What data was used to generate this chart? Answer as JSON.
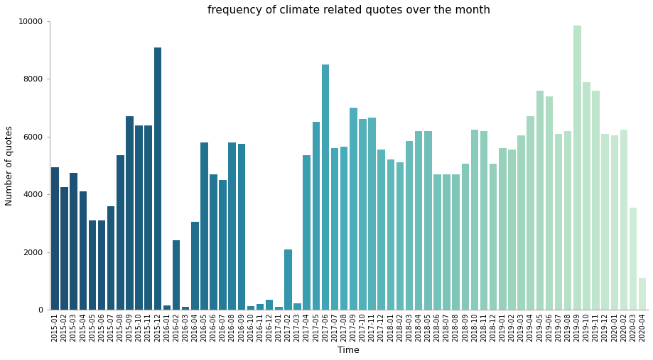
{
  "title": "frequency of climate related quotes over the month",
  "xlabel": "Time",
  "ylabel": "Number of quotes",
  "categories": [
    "2015-01",
    "2015-02",
    "2015-03",
    "2015-04",
    "2015-05",
    "2015-06",
    "2015-07",
    "2015-08",
    "2015-09",
    "2015-10",
    "2015-11",
    "2015-12",
    "2016-01",
    "2016-02",
    "2016-03",
    "2016-04",
    "2016-05",
    "2016-06",
    "2016-07",
    "2016-08",
    "2016-09",
    "2016-10",
    "2016-11",
    "2016-12",
    "2017-01",
    "2017-02",
    "2017-03",
    "2017-04",
    "2017-05",
    "2017-06",
    "2017-07",
    "2017-08",
    "2017-09",
    "2017-10",
    "2017-11",
    "2017-12",
    "2018-01",
    "2018-02",
    "2018-03",
    "2018-04",
    "2018-05",
    "2018-06",
    "2018-07",
    "2018-08",
    "2018-09",
    "2018-10",
    "2018-11",
    "2018-12",
    "2019-01",
    "2019-02",
    "2019-03",
    "2019-04",
    "2019-05",
    "2019-06",
    "2019-07",
    "2019-08",
    "2019-09",
    "2019-10",
    "2019-11",
    "2019-12",
    "2020-01",
    "2020-02",
    "2020-03",
    "2020-04"
  ],
  "values": [
    4950,
    4250,
    4750,
    4100,
    3100,
    3100,
    3600,
    5350,
    6700,
    6400,
    6400,
    9100,
    150,
    2400,
    100,
    3050,
    5800,
    4700,
    4500,
    5800,
    5750,
    120,
    200,
    350,
    100,
    2100,
    220,
    5350,
    6500,
    8500,
    5600,
    5650,
    7000,
    6600,
    6650,
    5550,
    5200,
    5100,
    5850,
    6200,
    6200,
    4700,
    4700,
    4700,
    5050,
    6250,
    6200,
    5050,
    5600,
    5550,
    6050,
    6700,
    7600,
    7400,
    6100,
    6200,
    9850,
    7900,
    7600,
    6100,
    6050,
    6250,
    3550,
    1100
  ],
  "ylim": [
    0,
    10000
  ],
  "yticks": [
    0,
    2000,
    4000,
    6000,
    8000,
    10000
  ],
  "color_stops": [
    [
      0.0,
      "#1d4f72"
    ],
    [
      0.18,
      "#1d6080"
    ],
    [
      0.36,
      "#2a8fa8"
    ],
    [
      0.5,
      "#4aadba"
    ],
    [
      0.64,
      "#72c0b8"
    ],
    [
      0.78,
      "#9dd4bc"
    ],
    [
      0.88,
      "#b8e2c8"
    ],
    [
      1.0,
      "#d0ecd8"
    ]
  ],
  "spine_color": "#aaaaaa",
  "background_color": "#ffffff",
  "title_fontsize": 11,
  "axis_label_fontsize": 9,
  "tick_fontsize": 7
}
